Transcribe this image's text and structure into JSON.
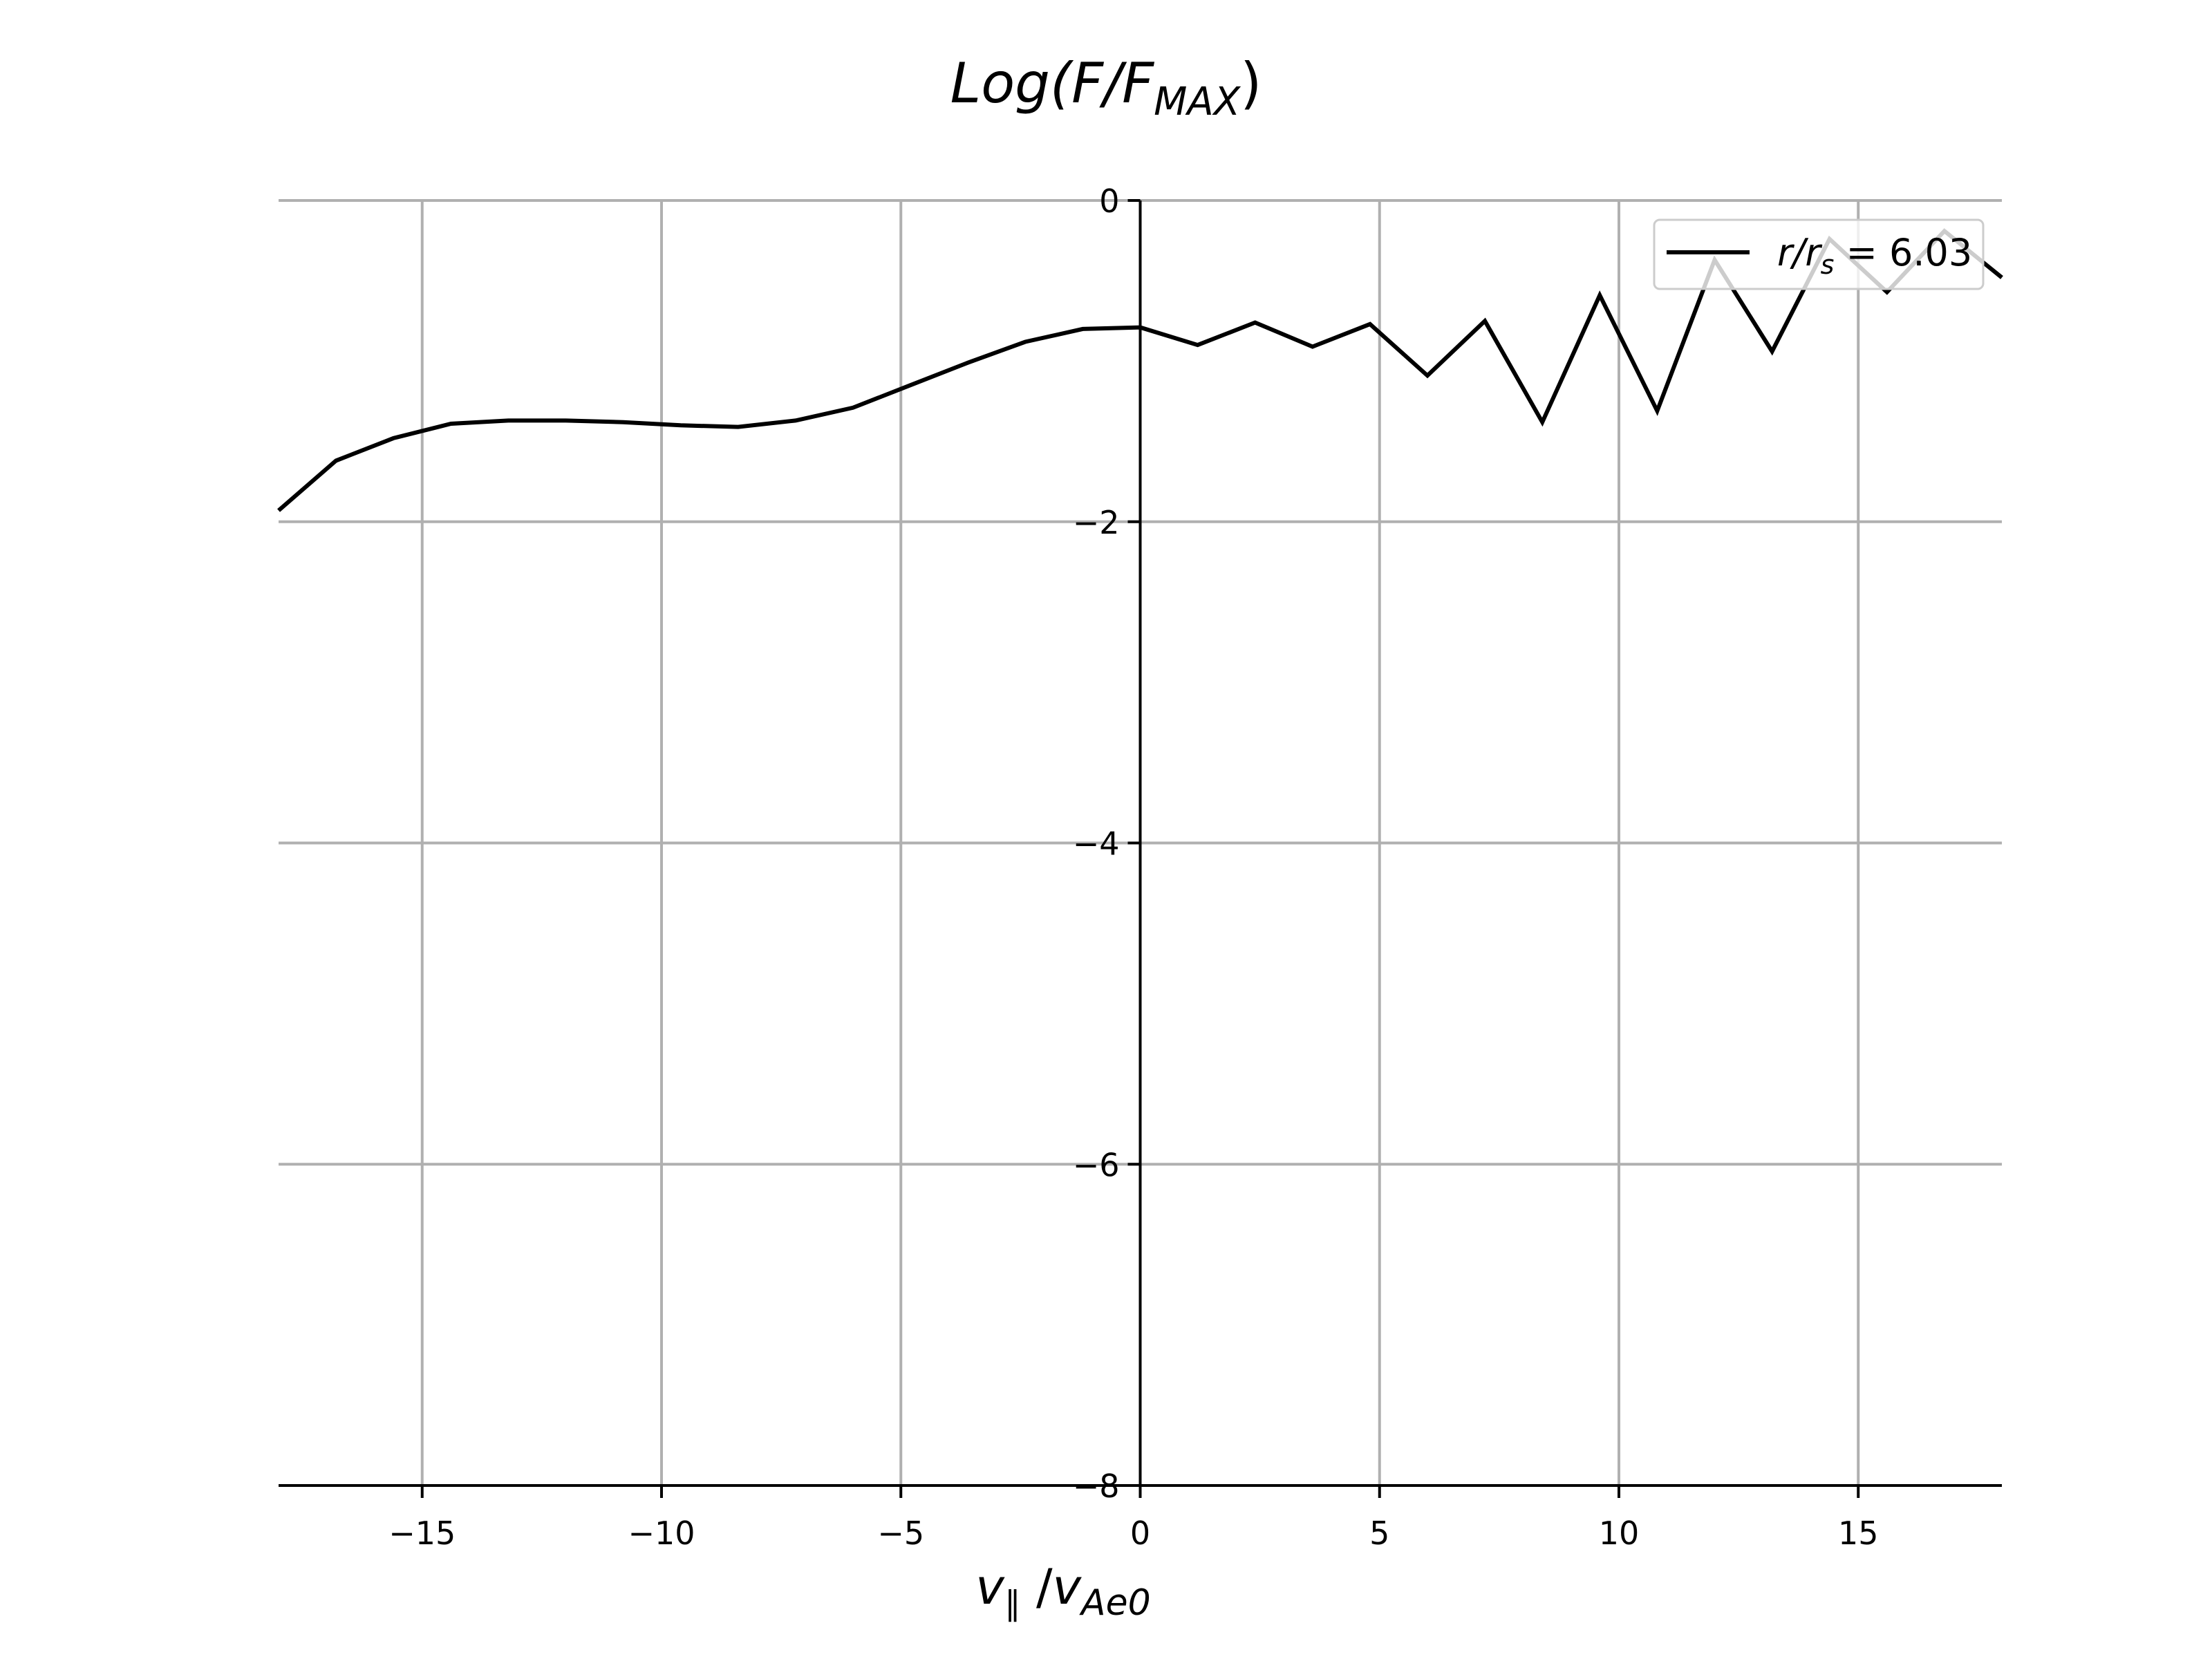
{
  "chart_data": {
    "type": "line",
    "title": "Log(F/F_MAX)",
    "title_parts": {
      "pre": "Log(F/F",
      "sub": "MAX",
      "post": ")"
    },
    "xlabel": "v_∥ /v_Ae0",
    "xlabel_parts": {
      "v": "v",
      "v_sub": "∥",
      "slash": " /",
      "v2": "v",
      "v2_sub": "Ae0"
    },
    "ylabel": "",
    "xlim": [
      -18,
      18
    ],
    "ylim": [
      -8,
      0
    ],
    "xticks": [
      -15,
      -10,
      -5,
      0,
      5,
      10,
      15
    ],
    "xtick_labels": [
      "−15",
      "−10",
      "−5",
      "0",
      "5",
      "10",
      "15"
    ],
    "yticks": [
      0,
      -2,
      -4,
      -6,
      -8
    ],
    "ytick_labels": [
      "0",
      "−2",
      "−4",
      "−6",
      "−8"
    ],
    "grid": true,
    "legend_position": "top-right",
    "colors": {
      "line": "#000000",
      "grid": "#b0b0b0",
      "axis": "#000000"
    },
    "series": [
      {
        "name": "r/r_s = 6.03",
        "name_parts": {
          "r": "r",
          "slash": "/",
          "r2": "r",
          "sub": "s",
          "rest": " = 6.03"
        },
        "x": [
          -18.0,
          -16.8,
          -15.6,
          -14.4,
          -13.2,
          -12.0,
          -10.8,
          -9.6,
          -8.4,
          -7.2,
          -6.0,
          -4.8,
          -3.6,
          -2.4,
          -1.2,
          0.0,
          1.2,
          2.4,
          3.6,
          4.8,
          6.0,
          7.2,
          8.4,
          9.6,
          10.8,
          12.0,
          13.2,
          14.4,
          15.6,
          16.8,
          18.0
        ],
        "y": [
          -1.93,
          -1.62,
          -1.48,
          -1.39,
          -1.37,
          -1.37,
          -1.38,
          -1.4,
          -1.41,
          -1.37,
          -1.29,
          -1.15,
          -1.01,
          -0.88,
          -0.8,
          -0.79,
          -0.9,
          -0.76,
          -0.91,
          -0.77,
          -1.09,
          -0.75,
          -1.38,
          -0.59,
          -1.31,
          -0.37,
          -0.94,
          -0.24,
          -0.57,
          -0.19,
          -0.48
        ]
      }
    ]
  }
}
